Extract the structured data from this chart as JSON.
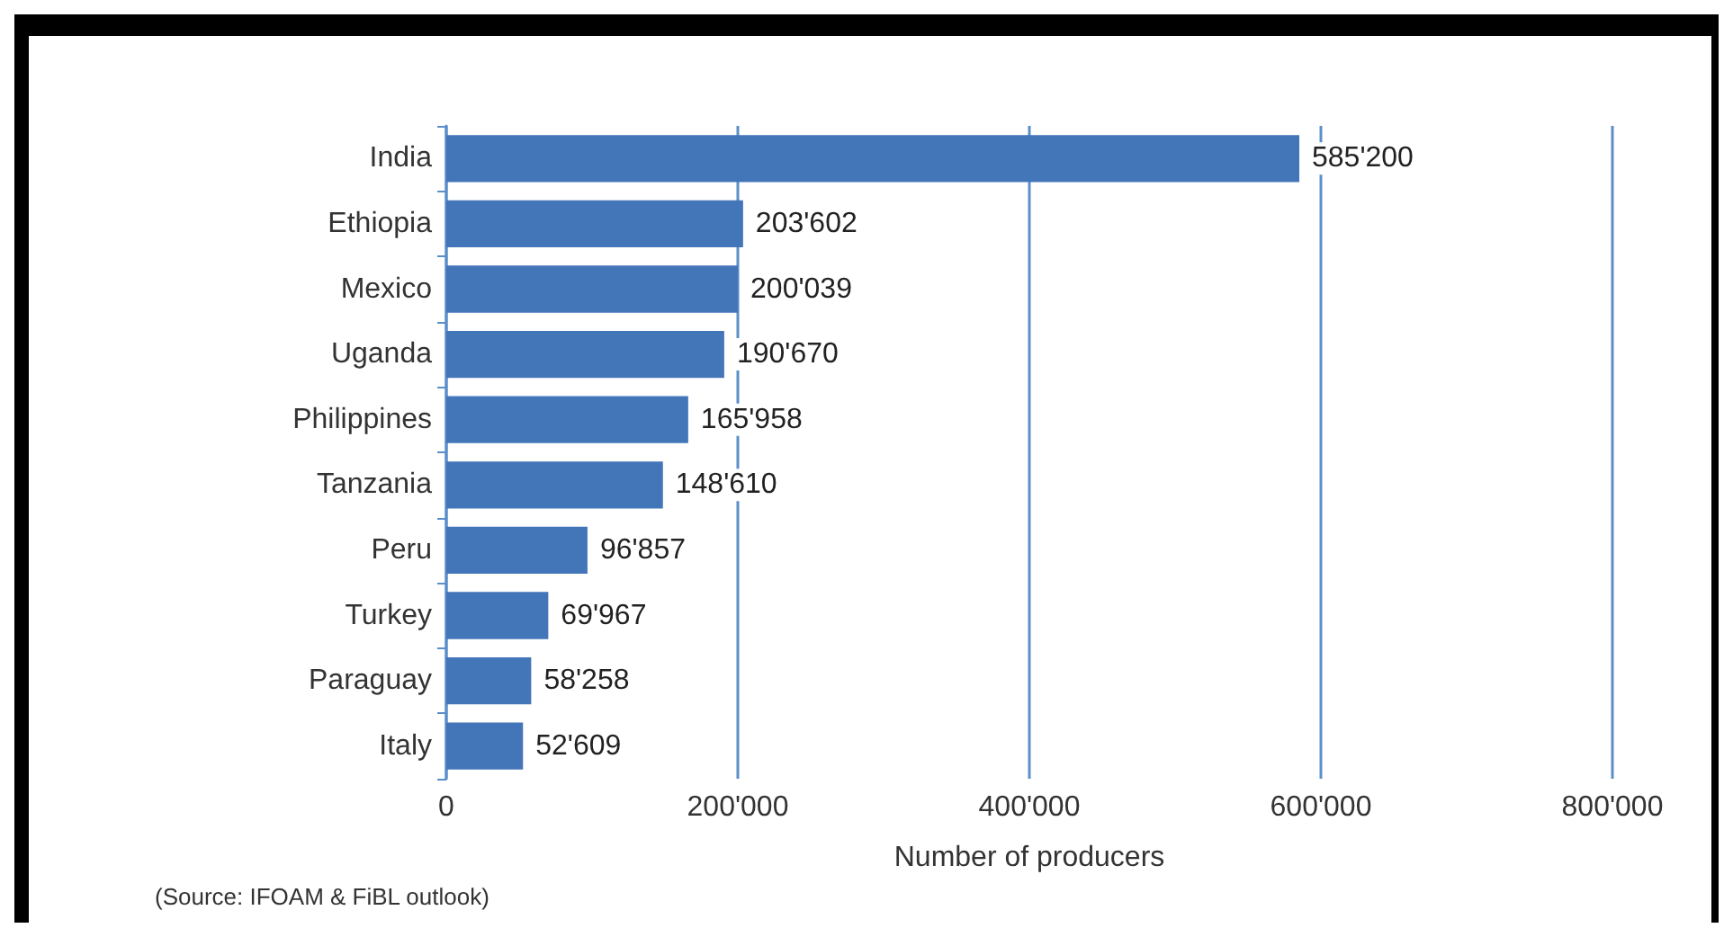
{
  "chart_data": {
    "type": "bar",
    "orientation": "horizontal",
    "xlabel": "Number of producers",
    "categories": [
      "India",
      "Ethiopia",
      "Mexico",
      "Uganda",
      "Philippines",
      "Tanzania",
      "Peru",
      "Turkey",
      "Paraguay",
      "Italy"
    ],
    "values": [
      585200,
      203602,
      200039,
      190670,
      165958,
      148610,
      96857,
      69967,
      58258,
      52609
    ],
    "value_labels": [
      "585'200",
      "203'602",
      "200'039",
      "190'670",
      "165'958",
      "148'610",
      "96'857",
      "69'967",
      "58'258",
      "52'609"
    ],
    "color": "#4375b9",
    "xlim": [
      0,
      800000
    ],
    "xticks": [
      {
        "value": 0,
        "label": "0"
      },
      {
        "value": 200000,
        "label": "200'000"
      },
      {
        "value": 400000,
        "label": "400'000"
      },
      {
        "value": 600000,
        "label": "600'000"
      },
      {
        "value": 800000,
        "label": "800'000"
      }
    ],
    "grid": "x",
    "annotations": [
      "(Source: IFOAM & FiBL outlook)"
    ]
  }
}
